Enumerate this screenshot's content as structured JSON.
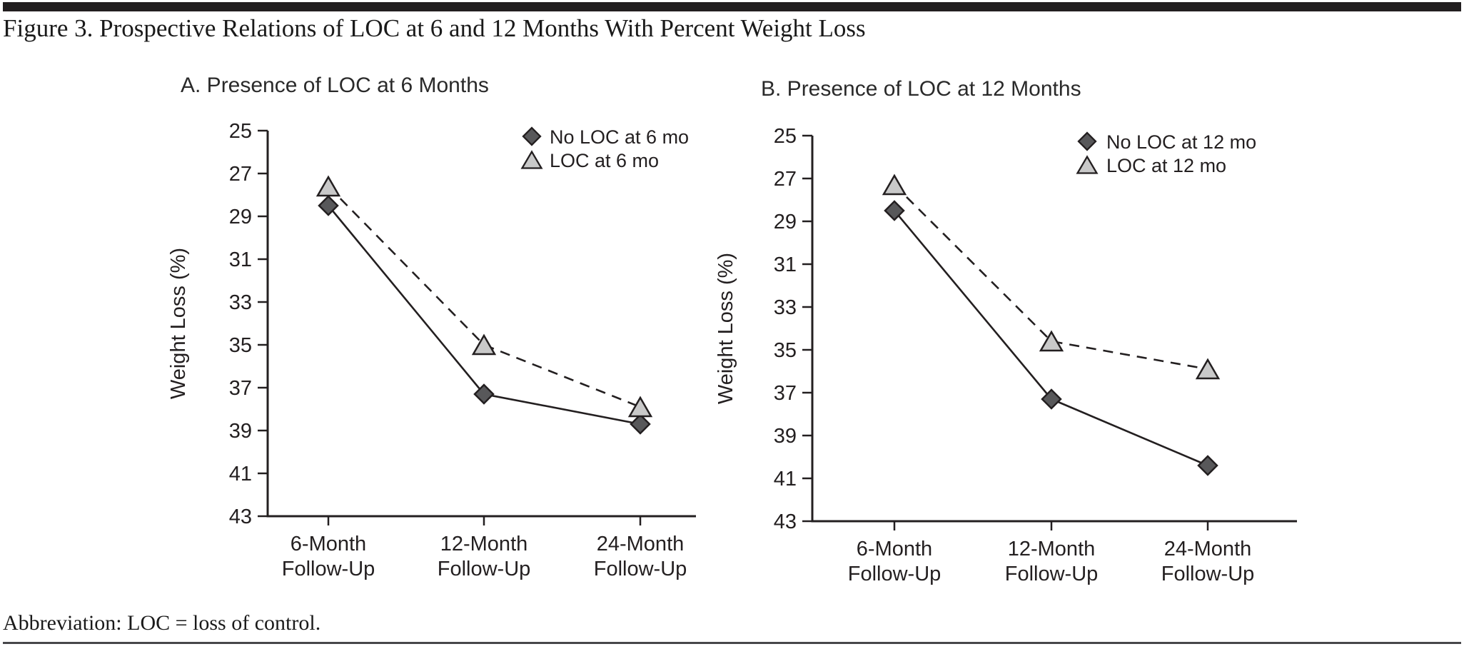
{
  "page": {
    "figure_title": "Figure 3. Prospective Relations of LOC at 6 and 12 Months With Percent Weight Loss",
    "footnote": "Abbreviation: LOC = loss of control."
  },
  "colors": {
    "axis": "#231f20",
    "text": "#231f20",
    "diamond_fill": "#58585a",
    "triangle_fill": "#c9c9c9"
  },
  "chart_data": [
    {
      "type": "line",
      "panel_label": "A. Presence of LOC at 6 Months",
      "ylabel": "Weight Loss (%)",
      "categories": [
        "6-Month\nFollow-Up",
        "12-Month\nFollow-Up",
        "24-Month\nFollow-Up"
      ],
      "yticks": [
        25,
        27,
        29,
        31,
        33,
        35,
        37,
        39,
        41,
        43
      ],
      "ylim": [
        25,
        43
      ],
      "y_inverted": true,
      "grid": false,
      "legend_position": "top-right",
      "series": [
        {
          "name": "No LOC at 6 mo",
          "values": [
            28.5,
            37.3,
            38.7
          ],
          "marker": "diamond",
          "line_style": "solid",
          "color": "#58585a"
        },
        {
          "name": "LOC at 6 mo",
          "values": [
            27.6,
            35.0,
            37.9
          ],
          "marker": "triangle",
          "line_style": "dashed",
          "color": "#c9c9c9"
        }
      ]
    },
    {
      "type": "line",
      "panel_label": "B. Presence of LOC at 12 Months",
      "ylabel": "Weight Loss (%)",
      "categories": [
        "6-Month\nFollow-Up",
        "12-Month\nFollow-Up",
        "24-Month\nFollow-Up"
      ],
      "yticks": [
        25,
        27,
        29,
        31,
        33,
        35,
        37,
        39,
        41,
        43
      ],
      "ylim": [
        25,
        43
      ],
      "y_inverted": true,
      "grid": false,
      "legend_position": "top-right",
      "series": [
        {
          "name": "No LOC at 12 mo",
          "values": [
            28.5,
            37.3,
            40.4
          ],
          "marker": "diamond",
          "line_style": "solid",
          "color": "#58585a"
        },
        {
          "name": "LOC at 12 mo",
          "values": [
            27.3,
            34.6,
            35.9
          ],
          "marker": "triangle",
          "line_style": "dashed",
          "color": "#c9c9c9"
        }
      ]
    }
  ]
}
